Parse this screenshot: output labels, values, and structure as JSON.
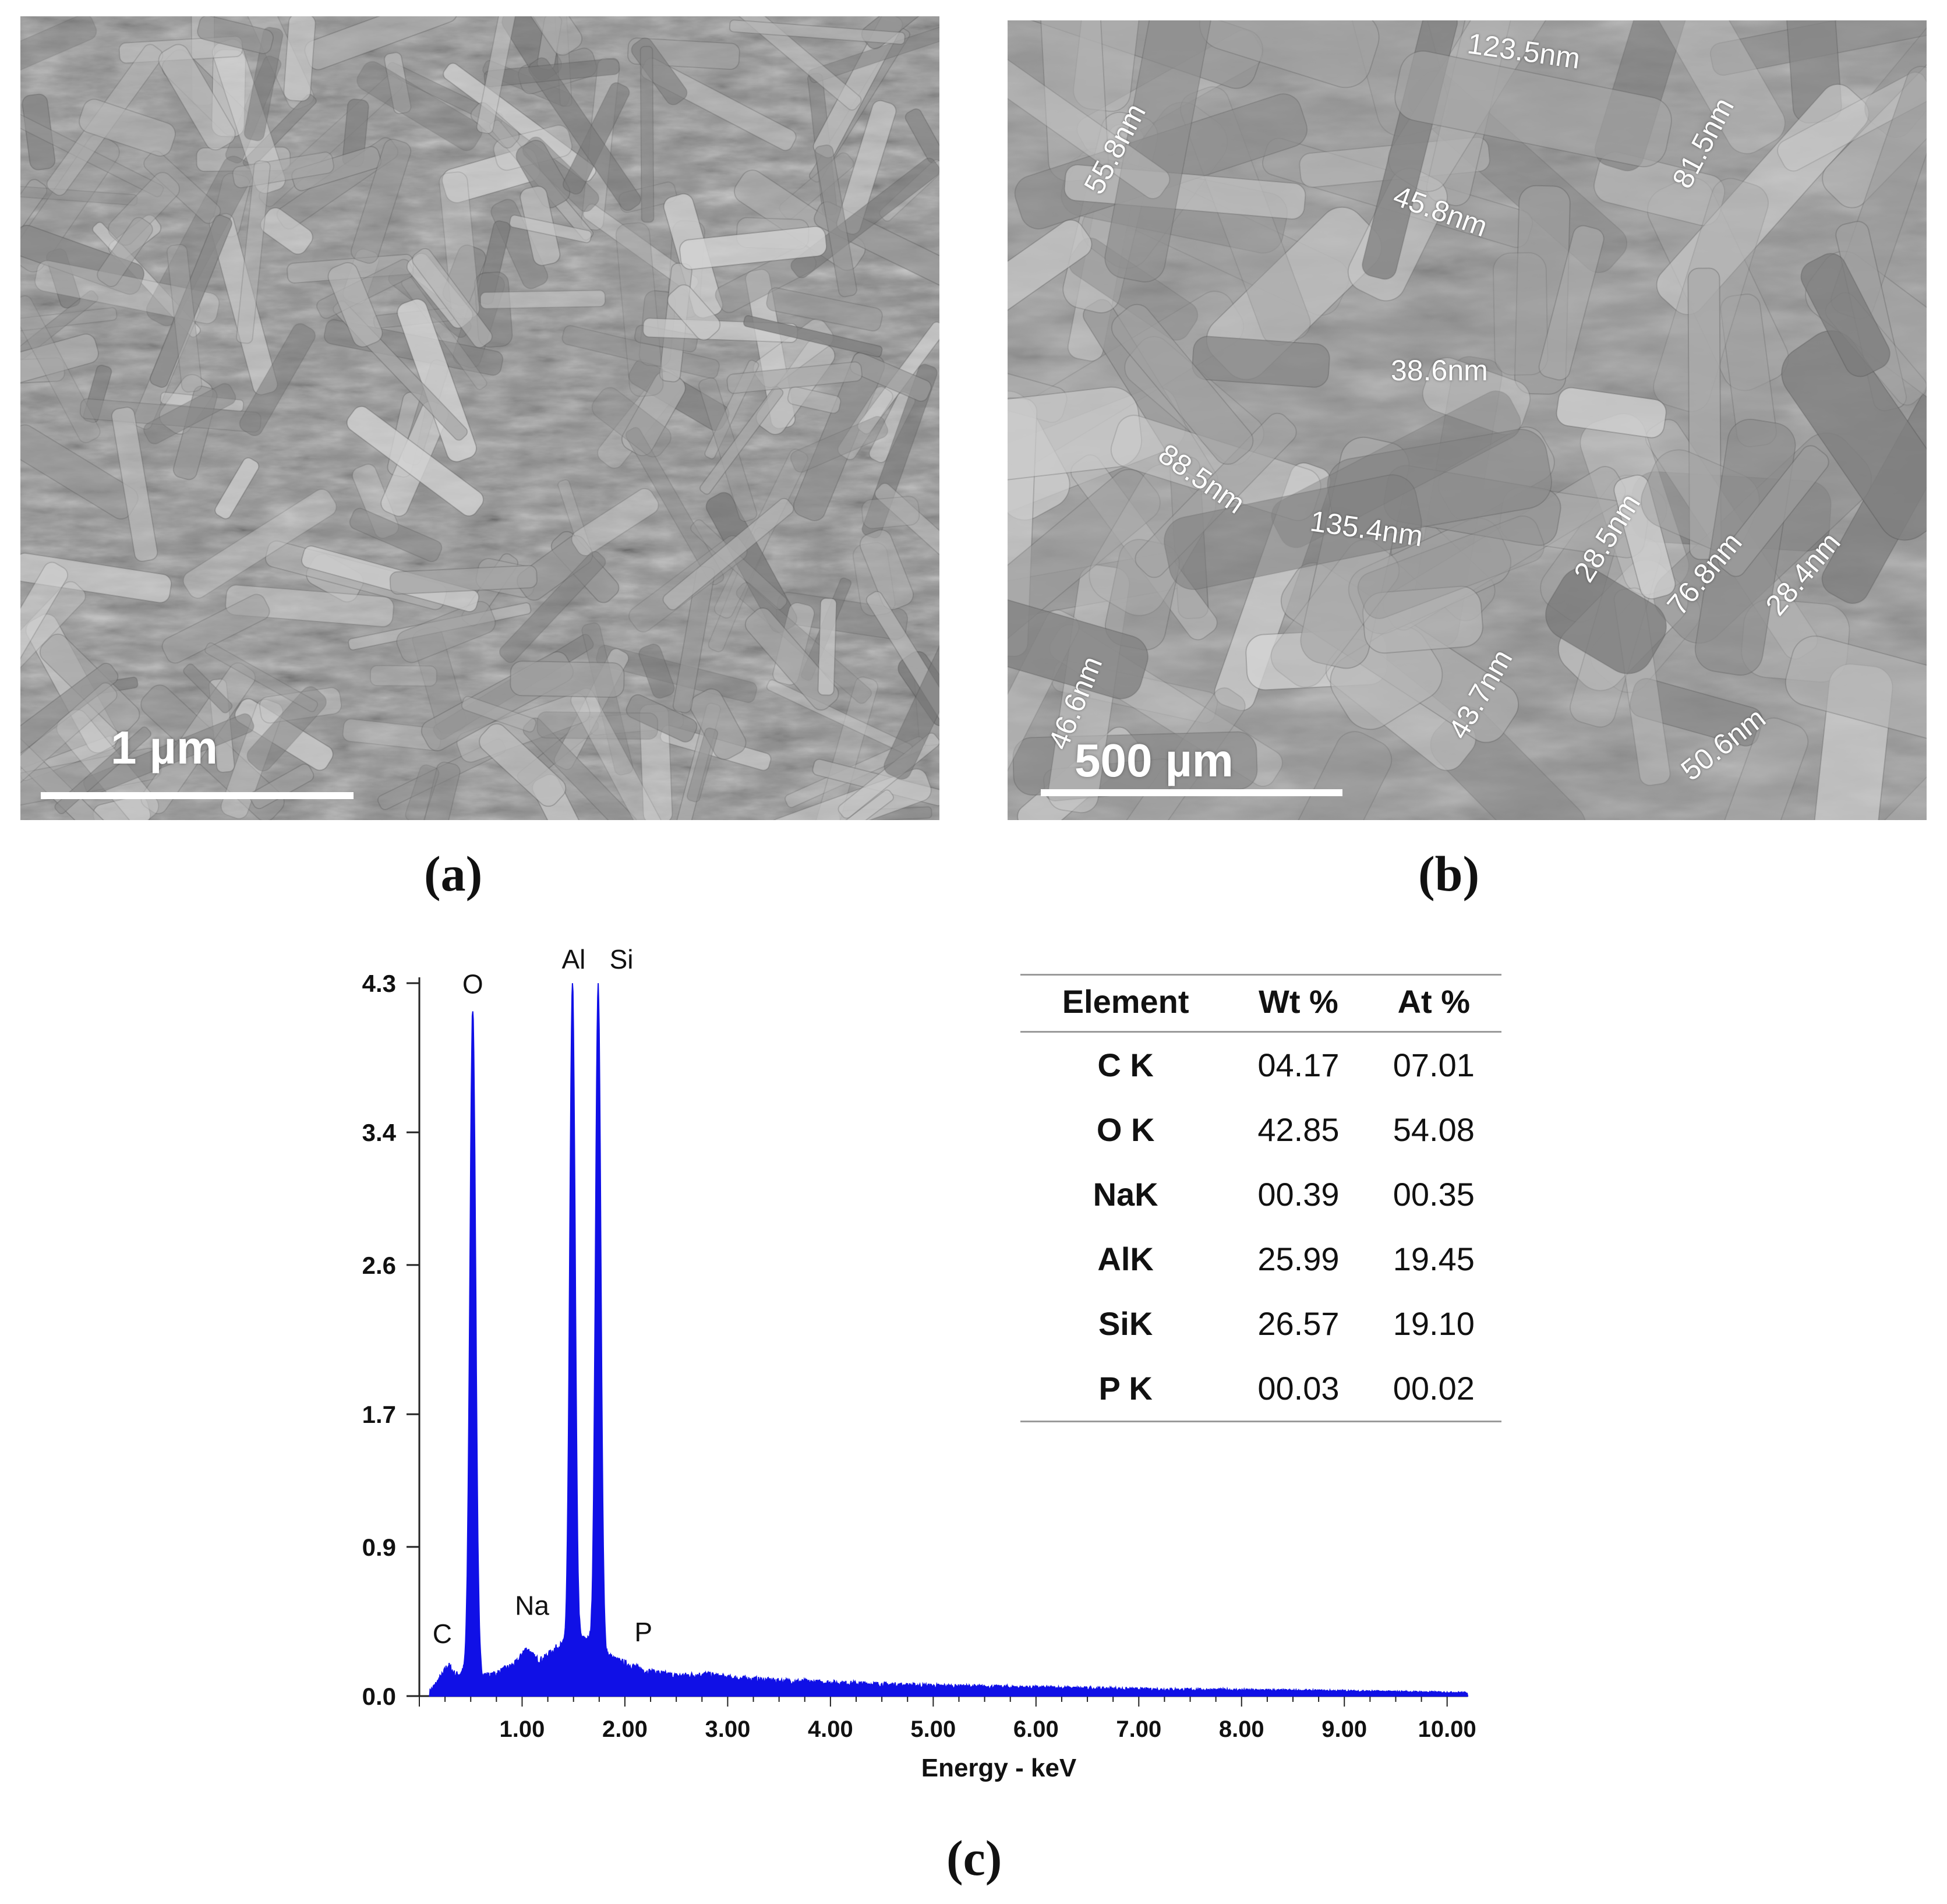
{
  "panels": {
    "a": {
      "caption": "(a)",
      "scale_label": "1 µm"
    },
    "b": {
      "caption": "(b)",
      "scale_label": "500 µm",
      "measurements": [
        "123.5nm",
        "55.8nm",
        "81.5nm",
        "45.8nm",
        "38.6nm",
        "88.5nm",
        "135.4nm",
        "28.5nm",
        "76.8nm",
        "28.4nm",
        "46.6nm",
        "43.7nm",
        "50.6nm"
      ]
    },
    "c": {
      "caption": "(c)"
    }
  },
  "chart_data": {
    "type": "line",
    "xlabel": "Energy - keV",
    "ylabel": "",
    "xlim": [
      0,
      10.2
    ],
    "ylim": [
      0,
      4.3
    ],
    "x_ticks": [
      "1.00",
      "2.00",
      "3.00",
      "4.00",
      "5.00",
      "6.00",
      "7.00",
      "8.00",
      "9.00",
      "10.00"
    ],
    "y_ticks": [
      "0.0",
      "0.9",
      "1.7",
      "2.6",
      "3.4",
      "4.3"
    ],
    "color": "#1010e6",
    "peaks": [
      {
        "label": "C",
        "x": 0.28,
        "y": 0.18
      },
      {
        "label": "O",
        "x": 0.52,
        "y": 4.15
      },
      {
        "label": "Na",
        "x": 1.04,
        "y": 0.28
      },
      {
        "label": "Al",
        "x": 1.49,
        "y": 4.3
      },
      {
        "label": "Si",
        "x": 1.74,
        "y": 4.3
      },
      {
        "label": "P",
        "x": 2.01,
        "y": 0.19
      }
    ],
    "background": [
      [
        0.1,
        0.02
      ],
      [
        0.2,
        0.1
      ],
      [
        0.35,
        0.12
      ],
      [
        0.45,
        0.15
      ],
      [
        0.7,
        0.12
      ],
      [
        0.9,
        0.18
      ],
      [
        1.2,
        0.22
      ],
      [
        1.35,
        0.3
      ],
      [
        1.62,
        0.35
      ],
      [
        1.9,
        0.22
      ],
      [
        2.2,
        0.15
      ],
      [
        2.5,
        0.12
      ],
      [
        2.8,
        0.13
      ],
      [
        3.0,
        0.11
      ],
      [
        3.5,
        0.09
      ],
      [
        4.0,
        0.08
      ],
      [
        4.5,
        0.07
      ],
      [
        5.0,
        0.06
      ],
      [
        6.0,
        0.05
      ],
      [
        7.0,
        0.04
      ],
      [
        8.0,
        0.035
      ],
      [
        9.0,
        0.03
      ],
      [
        10.2,
        0.02
      ]
    ]
  },
  "composition_table": {
    "headers": [
      "Element",
      "Wt %",
      "At %"
    ],
    "rows": [
      [
        "C K",
        "04.17",
        "07.01"
      ],
      [
        "O K",
        "42.85",
        "54.08"
      ],
      [
        "NaK",
        "00.39",
        "00.35"
      ],
      [
        "AlK",
        "25.99",
        "19.45"
      ],
      [
        "SiK",
        "26.57",
        "19.10"
      ],
      [
        "P K",
        "00.03",
        "00.02"
      ]
    ]
  }
}
